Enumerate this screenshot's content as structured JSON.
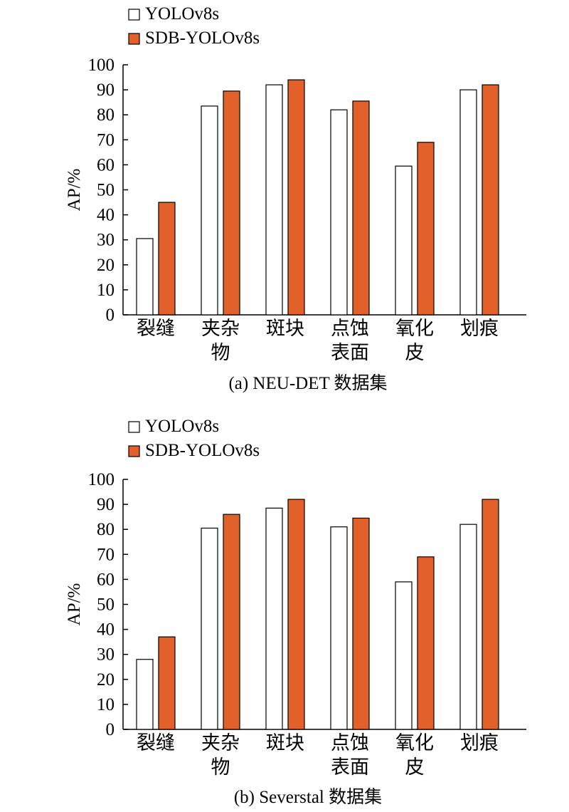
{
  "colors": {
    "yolo_fill": "#ffffff",
    "sdb_fill": "#e2612a",
    "stroke": "#000000"
  },
  "chart_data": [
    {
      "type": "bar",
      "caption": "(a) NEU-DET 数据集",
      "ylabel": "AP/%",
      "xlabel": "",
      "ylim": [
        0,
        100
      ],
      "yticks": [
        "0",
        "10",
        "20",
        "30",
        "40",
        "50",
        "60",
        "70",
        "80",
        "90",
        "100"
      ],
      "categories": [
        [
          "裂缝"
        ],
        [
          "夹杂",
          "物"
        ],
        [
          "斑块"
        ],
        [
          "点蚀",
          "表面"
        ],
        [
          "氧化",
          "皮"
        ],
        [
          "划痕"
        ]
      ],
      "legend": {
        "position": "top-left",
        "entries": [
          "YOLOv8s",
          "SDB-YOLOv8s"
        ]
      },
      "series": [
        {
          "name": "YOLOv8s",
          "values": [
            30.5,
            83.5,
            92,
            82,
            59.5,
            90
          ]
        },
        {
          "name": "SDB-YOLOv8s",
          "values": [
            45,
            89.5,
            94,
            85.5,
            69,
            92
          ]
        }
      ]
    },
    {
      "type": "bar",
      "caption": "(b) Severstal 数据集",
      "ylabel": "AP/%",
      "xlabel": "",
      "ylim": [
        0,
        100
      ],
      "yticks": [
        "0",
        "10",
        "20",
        "30",
        "40",
        "50",
        "60",
        "70",
        "80",
        "90",
        "100"
      ],
      "categories": [
        [
          "裂缝"
        ],
        [
          "夹杂",
          "物"
        ],
        [
          "斑块"
        ],
        [
          "点蚀",
          "表面"
        ],
        [
          "氧化",
          "皮"
        ],
        [
          "划痕"
        ]
      ],
      "legend": {
        "position": "top-left",
        "entries": [
          "YOLOv8s",
          "SDB-YOLOv8s"
        ]
      },
      "series": [
        {
          "name": "YOLOv8s",
          "values": [
            28,
            80.5,
            88.5,
            81,
            59,
            82
          ]
        },
        {
          "name": "SDB-YOLOv8s",
          "values": [
            37,
            86,
            92,
            84.5,
            69,
            92
          ]
        }
      ]
    }
  ]
}
